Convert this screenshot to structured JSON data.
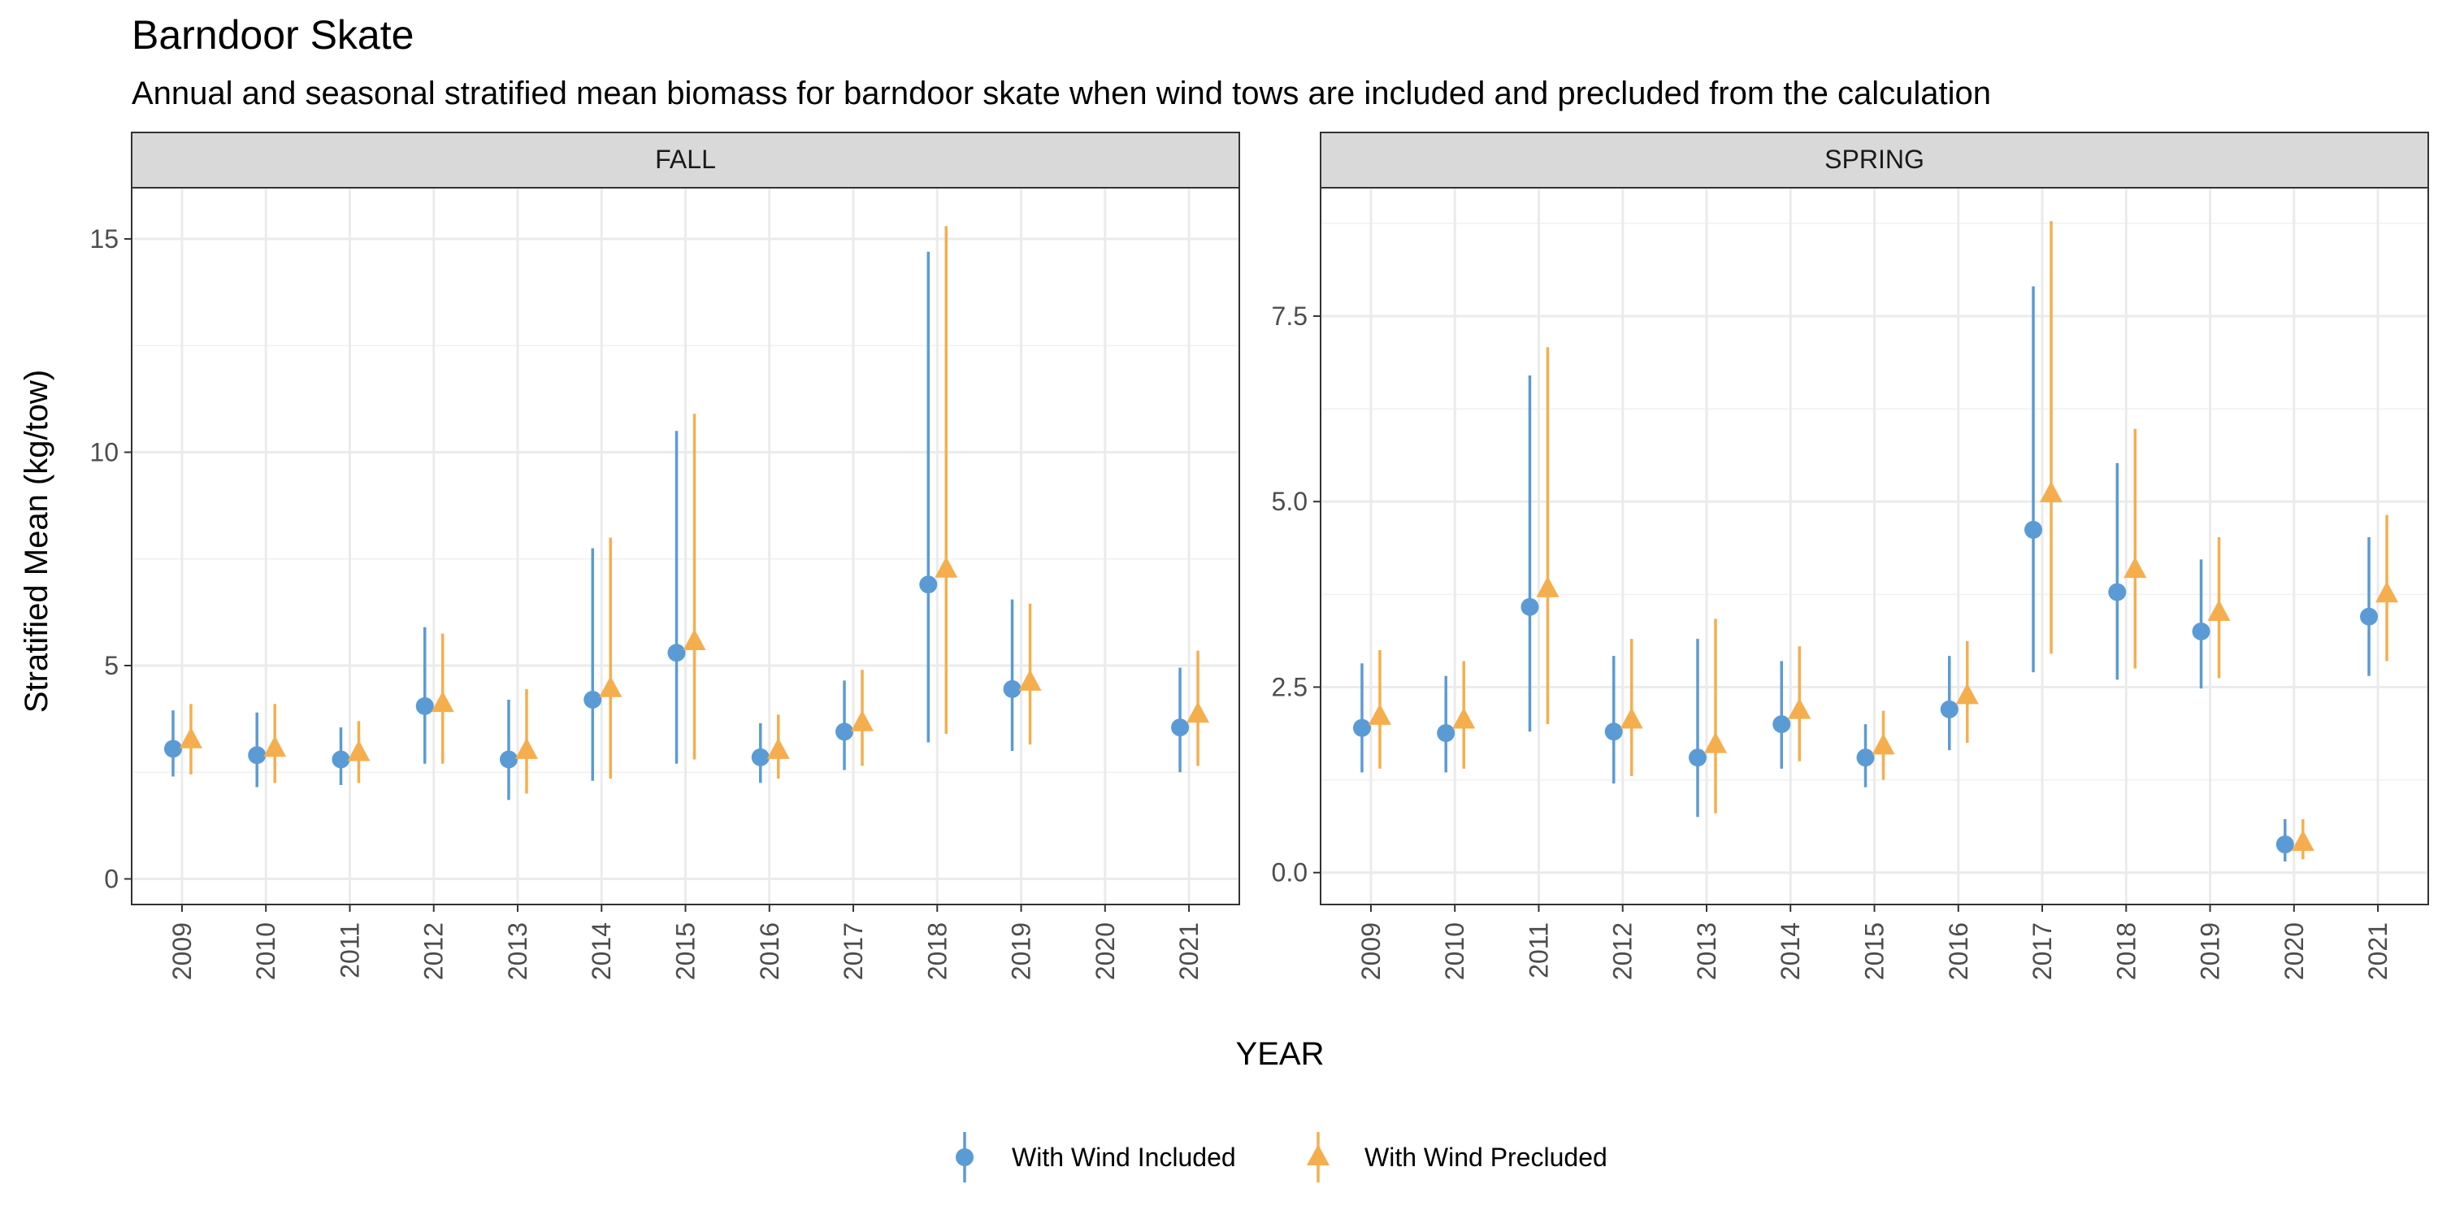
{
  "title": "Barndoor Skate",
  "subtitle": "Annual and seasonal stratified mean biomass for barndoor skate when wind tows are included and precluded from the calculation",
  "xlabel": "YEAR",
  "ylabel": "Stratified Mean (kg/tow)",
  "legend": [
    {
      "name": "With Wind Included",
      "shape": "circle",
      "color": "#5B9BD5"
    },
    {
      "name": "With Wind Precluded",
      "shape": "triangle",
      "color": "#F5AE4E"
    }
  ],
  "chart_data": [
    {
      "type": "scatter",
      "panel": "FALL",
      "categories": [
        "2009",
        "2010",
        "2011",
        "2012",
        "2013",
        "2014",
        "2015",
        "2016",
        "2017",
        "2018",
        "2019",
        "2020",
        "2021"
      ],
      "ylim": [
        -0.6,
        16.2
      ],
      "yticks": [
        0,
        5,
        10,
        15
      ],
      "ytick_labels": [
        "0",
        "5",
        "10",
        "15"
      ],
      "grid": true,
      "series": [
        {
          "name": "With Wind Included",
          "color": "#5B9BD5",
          "values": [
            3.05,
            2.9,
            2.8,
            4.05,
            2.8,
            4.2,
            5.3,
            2.85,
            3.45,
            6.9,
            4.45,
            null,
            3.55
          ],
          "lower": [
            2.4,
            2.15,
            2.2,
            2.7,
            1.85,
            2.3,
            2.7,
            2.25,
            2.55,
            3.2,
            3.0,
            null,
            2.5
          ],
          "upper": [
            3.95,
            3.9,
            3.55,
            5.9,
            4.2,
            7.75,
            10.5,
            3.65,
            4.65,
            14.7,
            6.55,
            null,
            4.95
          ]
        },
        {
          "name": "With Wind Precluded",
          "color": "#F5AE4E",
          "values": [
            3.25,
            3.05,
            2.95,
            4.1,
            3.0,
            4.45,
            5.55,
            3.0,
            3.65,
            7.25,
            4.6,
            null,
            3.85
          ],
          "lower": [
            2.45,
            2.25,
            2.25,
            2.7,
            2.0,
            2.35,
            2.8,
            2.35,
            2.65,
            3.4,
            3.15,
            null,
            2.65
          ],
          "upper": [
            4.1,
            4.1,
            3.7,
            5.75,
            4.45,
            8.0,
            10.9,
            3.85,
            4.9,
            15.3,
            6.45,
            null,
            5.35
          ]
        }
      ]
    },
    {
      "type": "scatter",
      "panel": "SPRING",
      "categories": [
        "2009",
        "2010",
        "2011",
        "2012",
        "2013",
        "2014",
        "2015",
        "2016",
        "2017",
        "2018",
        "2019",
        "2020",
        "2021"
      ],
      "ylim": [
        -0.43,
        9.23
      ],
      "yticks": [
        0,
        2.5,
        5,
        7.5
      ],
      "ytick_labels": [
        "0.0",
        "2.5",
        "5.0",
        "7.5"
      ],
      "grid": true,
      "series": [
        {
          "name": "With Wind Included",
          "color": "#5B9BD5",
          "values": [
            1.95,
            1.88,
            3.58,
            1.9,
            1.55,
            2.0,
            1.55,
            2.2,
            4.62,
            3.78,
            3.25,
            0.38,
            3.45
          ],
          "lower": [
            1.35,
            1.35,
            1.9,
            1.2,
            0.75,
            1.4,
            1.15,
            1.65,
            2.7,
            2.6,
            2.48,
            0.15,
            2.65
          ],
          "upper": [
            2.82,
            2.65,
            6.7,
            2.92,
            3.15,
            2.85,
            2.0,
            2.92,
            7.9,
            5.52,
            4.22,
            0.72,
            4.52
          ]
        },
        {
          "name": "With Wind Precluded",
          "color": "#F5AE4E",
          "values": [
            2.1,
            2.05,
            3.82,
            2.05,
            1.72,
            2.18,
            1.7,
            2.38,
            5.1,
            4.08,
            3.5,
            0.4,
            3.75
          ],
          "lower": [
            1.4,
            1.4,
            2.0,
            1.3,
            0.8,
            1.5,
            1.25,
            1.75,
            2.95,
            2.75,
            2.62,
            0.18,
            2.85
          ],
          "upper": [
            3.0,
            2.85,
            7.08,
            3.15,
            3.42,
            3.05,
            2.18,
            3.12,
            8.78,
            5.98,
            4.52,
            0.72,
            4.82
          ]
        }
      ]
    }
  ]
}
